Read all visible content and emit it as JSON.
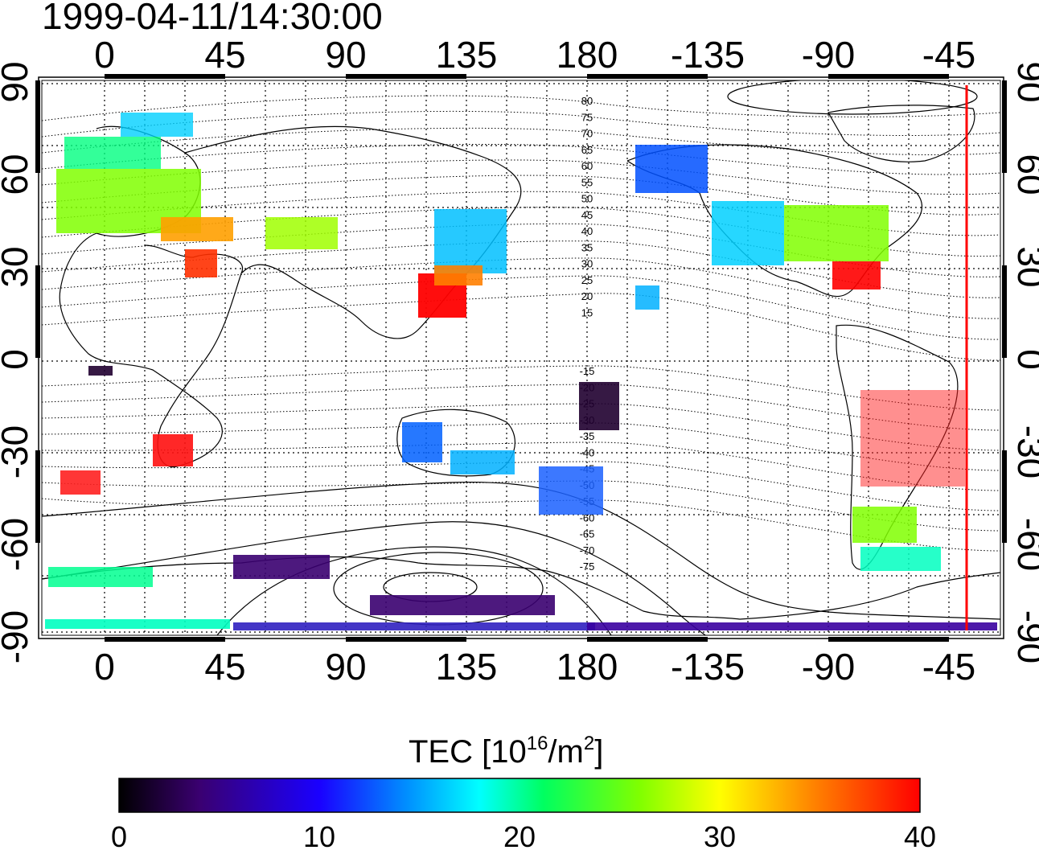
{
  "timestamp": "1999-04-11/14:30:00",
  "map": {
    "top_lon_ticks": [
      "0",
      "45",
      "90",
      "135",
      "180",
      "-135",
      "-90",
      "-45"
    ],
    "bottom_lon_ticks": [
      "0",
      "45",
      "90",
      "135",
      "180",
      "-135",
      "-90",
      "-45"
    ],
    "left_lat_ticks": [
      "90",
      "60",
      "30",
      "0",
      "-30",
      "-60",
      "-90"
    ],
    "right_lat_ticks": [
      "90",
      "60",
      "30",
      "0",
      "-30",
      "-60",
      "-90"
    ],
    "contour_labels": [
      "80",
      "75",
      "70",
      "65",
      "60",
      "55",
      "50",
      "45",
      "40",
      "35",
      "30",
      "25",
      "20",
      "15",
      "-15",
      "-20",
      "-25",
      "-30",
      "-35",
      "-40",
      "-45",
      "-50",
      "-55",
      "-60",
      "-65",
      "-70",
      "-75"
    ],
    "terminator_color": "#ff0000",
    "frame_color": "#000000"
  },
  "colorbar": {
    "label_main": "TEC  [10",
    "label_exp1": "16",
    "label_unit": "/m",
    "label_exp2": "2",
    "label_close": "]",
    "ticks": [
      "0",
      "10",
      "20",
      "30",
      "40"
    ],
    "vmin": 0,
    "vmax": 40,
    "colormap_stops": [
      "#000000",
      "#3a0070",
      "#1a00ff",
      "#0090ff",
      "#00ffff",
      "#00ff60",
      "#80ff00",
      "#ffff00",
      "#ff8000",
      "#ff0000"
    ]
  }
}
